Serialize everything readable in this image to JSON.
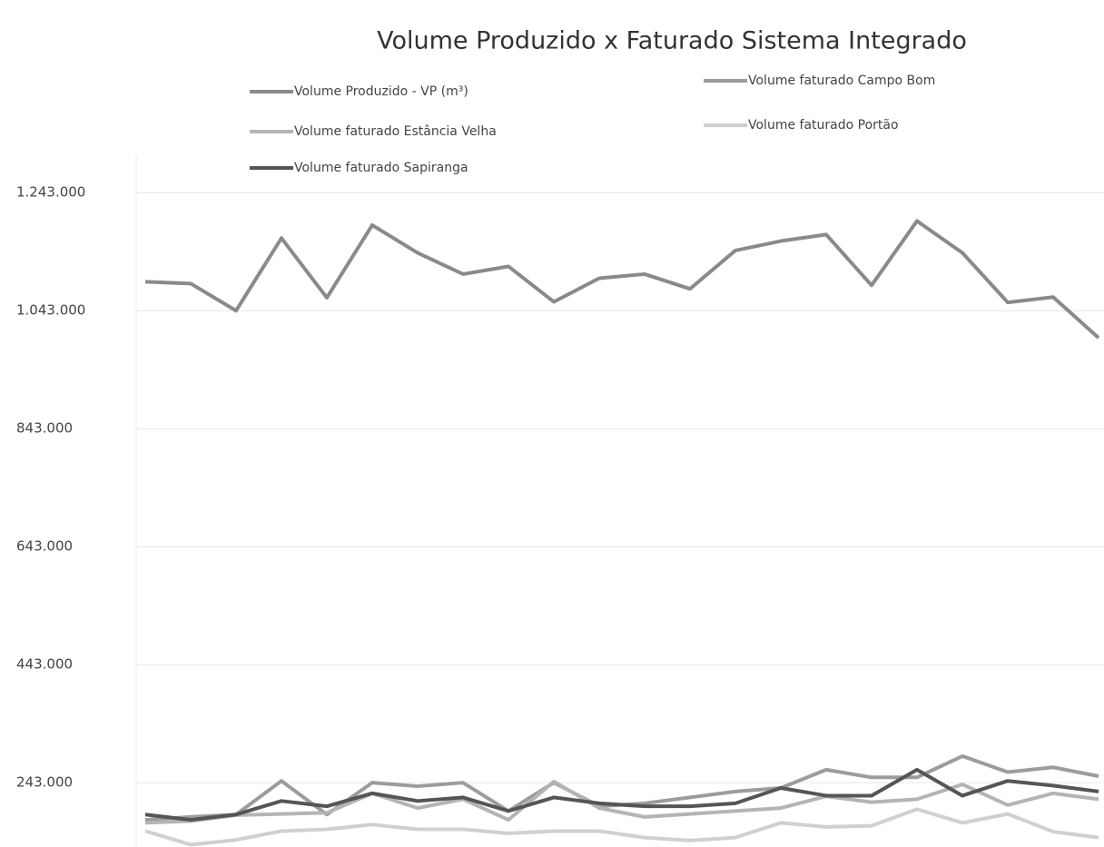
{
  "chart_data": {
    "type": "line",
    "title": "Volume Produzido x Faturado Sistema Integrado",
    "categories": [
      null,
      null,
      null,
      null,
      null,
      null,
      null,
      null,
      null,
      null,
      null,
      null,
      null,
      null,
      null,
      null,
      null,
      null,
      null,
      null,
      null,
      null
    ],
    "series": [
      {
        "name": "Volume Produzido - VP (m³)",
        "color": "#8a8a8a",
        "values": [
          1092000,
          1089000,
          1043000,
          1166000,
          1065000,
          1188000,
          1141000,
          1105000,
          1118000,
          1058000,
          1098000,
          1105000,
          1080000,
          1145000,
          1161000,
          1172000,
          1086000,
          1195000,
          1141000,
          1057000,
          1066000,
          997000
        ]
      },
      {
        "name": "Volume faturado Campo Bom",
        "color": "#9c9c9c",
        "values": [
          180000,
          185000,
          189000,
          246000,
          189000,
          243000,
          237000,
          243000,
          195000,
          243000,
          203000,
          208000,
          218000,
          228000,
          234000,
          265000,
          252000,
          252000,
          288000,
          261000,
          269000,
          254000
        ]
      },
      {
        "name": "Volume faturado Estância Velha",
        "color": "#b4b4b4",
        "values": [
          175000,
          178000,
          188000,
          190000,
          192000,
          225000,
          200000,
          215000,
          180000,
          245000,
          200000,
          185000,
          190000,
          195000,
          200000,
          220000,
          210000,
          215000,
          240000,
          205000,
          225000,
          215000
        ]
      },
      {
        "name": "Volume faturado Portão",
        "color": "#d0d0d0",
        "values": [
          161000,
          138000,
          146000,
          161000,
          164000,
          172000,
          164000,
          164000,
          157000,
          161000,
          161000,
          150000,
          145000,
          150000,
          175000,
          168000,
          170000,
          198000,
          175000,
          190000,
          160000,
          150000
        ]
      },
      {
        "name": "Volume faturado Sapiranga",
        "color": "#555555",
        "values": [
          189000,
          180000,
          189000,
          212000,
          203000,
          225000,
          212000,
          218000,
          195000,
          218000,
          208000,
          203000,
          203000,
          208000,
          234000,
          221000,
          221000,
          265000,
          221000,
          246000,
          238000,
          228000
        ]
      }
    ],
    "ylim": [
      134000,
      1308000
    ],
    "yticks": [
      {
        "value": 243000,
        "label": "243.000"
      },
      {
        "value": 443000,
        "label": "443.000"
      },
      {
        "value": 643000,
        "label": "643.000"
      },
      {
        "value": 843000,
        "label": "843.000"
      },
      {
        "value": 1043000,
        "label": "1.043.000"
      },
      {
        "value": 1243000,
        "label": "1.243.000"
      }
    ],
    "grid": true
  }
}
